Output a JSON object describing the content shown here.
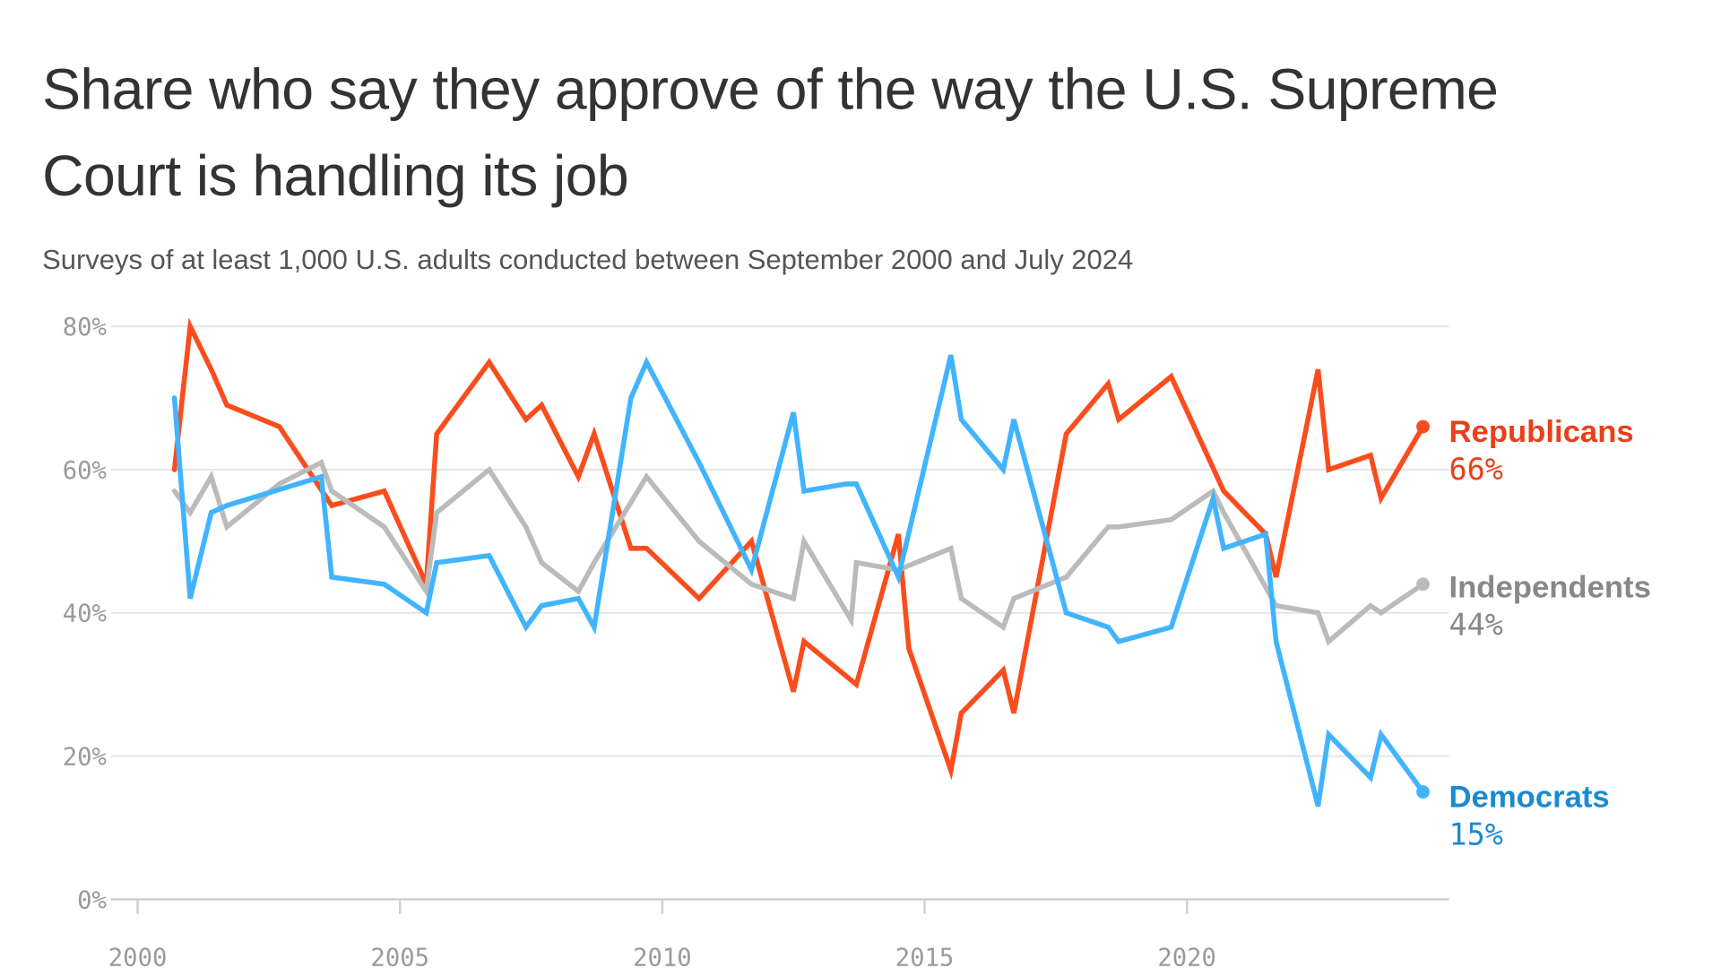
{
  "title": "Share who say they approve of the way the U.S. Supreme Court is handling its job",
  "subtitle": "Surveys of at least 1,000 U.S. adults conducted between September 2000 and July 2024",
  "chart_data": {
    "type": "line",
    "title": "Share who say they approve of the way the U.S. Supreme Court is handling its job",
    "subtitle": "Surveys of at least 1,000 U.S. adults conducted between September 2000 and July 2024",
    "xlabel": "",
    "ylabel": "",
    "xlim": [
      2000,
      2025
    ],
    "ylim": [
      0,
      80
    ],
    "x_ticks": [
      "2000",
      "2005",
      "2010",
      "2015",
      "2020"
    ],
    "y_ticks": [
      "0%",
      "20%",
      "40%",
      "60%",
      "80%"
    ],
    "grid": "horizontal",
    "legend": "direct labels at right end of lines",
    "series": [
      {
        "name": "Republicans",
        "color": "#fa4d1d",
        "label_color": "#e8401a",
        "end_label": "66%",
        "x": [
          2000.7,
          2001.0,
          2001.4,
          2001.7,
          2002.7,
          2003.7,
          2004.7,
          2005.5,
          2005.7,
          2006.7,
          2007.4,
          2007.7,
          2008.4,
          2008.7,
          2009.4,
          2009.7,
          2010.7,
          2011.7,
          2012.5,
          2012.7,
          2013.7,
          2014.5,
          2014.7,
          2015.5,
          2015.7,
          2016.5,
          2016.7,
          2017.7,
          2018.5,
          2018.7,
          2019.7,
          2020.7,
          2021.5,
          2021.7,
          2022.5,
          2022.7,
          2023.5,
          2023.7,
          2024.5
        ],
        "y": [
          60,
          80,
          74,
          69,
          66,
          55,
          57,
          44,
          65,
          75,
          67,
          69,
          59,
          65,
          49,
          49,
          42,
          50,
          29,
          36,
          30,
          51,
          35,
          18,
          26,
          32,
          26,
          65,
          72,
          67,
          73,
          57,
          51,
          45,
          74,
          60,
          62,
          56,
          66
        ]
      },
      {
        "name": "Independents",
        "color": "#bbbbbb",
        "label_color": "#888888",
        "end_label": "44%",
        "x": [
          2000.7,
          2001.0,
          2001.4,
          2001.7,
          2002.7,
          2003.5,
          2003.7,
          2004.7,
          2005.5,
          2005.7,
          2006.7,
          2007.4,
          2007.7,
          2008.4,
          2008.7,
          2009.7,
          2010.7,
          2011.7,
          2012.5,
          2012.7,
          2013.6,
          2013.7,
          2014.5,
          2015.5,
          2015.7,
          2016.5,
          2016.7,
          2017.7,
          2018.5,
          2018.7,
          2019.7,
          2020.5,
          2020.7,
          2021.7,
          2022.5,
          2022.7,
          2023.5,
          2023.7,
          2024.5
        ],
        "y": [
          57,
          54,
          59,
          52,
          58,
          61,
          57,
          52,
          43,
          54,
          60,
          52,
          47,
          43,
          47,
          59,
          50,
          44,
          42,
          50,
          39,
          47,
          46,
          49,
          42,
          38,
          42,
          45,
          52,
          52,
          53,
          57,
          54,
          41,
          40,
          36,
          41,
          40,
          44
        ]
      },
      {
        "name": "Democrats",
        "color": "#41b4ff",
        "label_color": "#1a8ad1",
        "end_label": "15%",
        "x": [
          2000.7,
          2001.0,
          2001.4,
          2001.7,
          2003.5,
          2003.7,
          2004.7,
          2005.5,
          2005.7,
          2006.7,
          2007.4,
          2007.7,
          2008.4,
          2008.7,
          2009.4,
          2009.7,
          2010.7,
          2011.7,
          2012.5,
          2012.7,
          2013.5,
          2013.7,
          2014.5,
          2015.5,
          2015.7,
          2016.5,
          2016.7,
          2017.7,
          2018.5,
          2018.7,
          2019.7,
          2020.5,
          2020.7,
          2021.5,
          2021.7,
          2022.5,
          2022.7,
          2023.5,
          2023.7,
          2024.5
        ],
        "y": [
          70,
          42,
          54,
          55,
          59,
          45,
          44,
          40,
          47,
          48,
          38,
          41,
          42,
          38,
          70,
          75,
          61,
          46,
          68,
          57,
          58,
          58,
          45,
          76,
          67,
          60,
          67,
          40,
          38,
          36,
          38,
          56,
          49,
          51,
          36,
          13,
          23,
          17,
          23,
          15
        ]
      }
    ]
  }
}
